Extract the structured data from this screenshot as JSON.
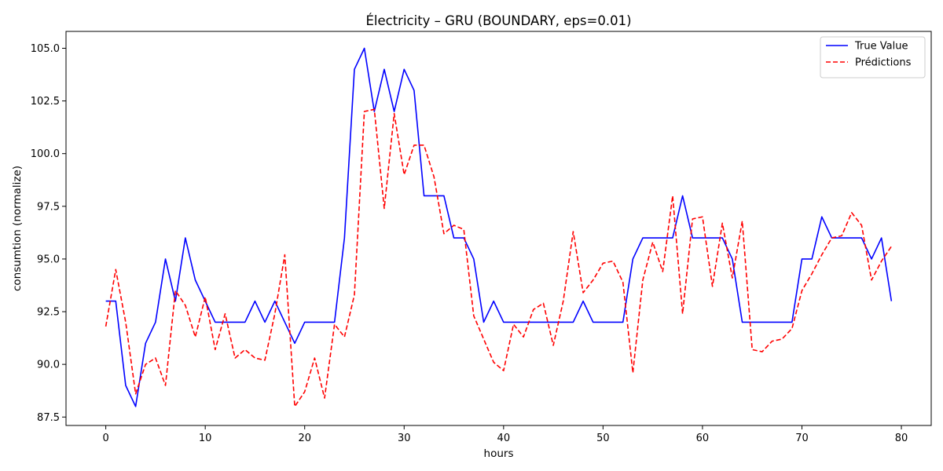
{
  "chart_data": {
    "type": "line",
    "title": "Électricity – GRU (BOUNDARY, eps=0.01)",
    "xlabel": "hours",
    "ylabel": "consumtion (normalize)",
    "xlim": [
      -4,
      83
    ],
    "ylim": [
      87.1,
      105.8
    ],
    "xticks": [
      0,
      10,
      20,
      30,
      40,
      50,
      60,
      70,
      80
    ],
    "yticks": [
      87.5,
      90.0,
      92.5,
      95.0,
      97.5,
      100.0,
      102.5,
      105.0
    ],
    "ytick_labels": [
      "87.5",
      "90.0",
      "92.5",
      "95.0",
      "97.5",
      "100.0",
      "102.5",
      "105.0"
    ],
    "grid": false,
    "legend_position": "top-right",
    "series": [
      {
        "name": "True Value",
        "color": "#0000ff",
        "style": "solid",
        "values": [
          93,
          93,
          89,
          88,
          91,
          92,
          95,
          93,
          96,
          94,
          93,
          92,
          92,
          92,
          92,
          93,
          92,
          93,
          92,
          91,
          92,
          92,
          92,
          92,
          96,
          104,
          105,
          102,
          104,
          102,
          104,
          103,
          98,
          98,
          98,
          96,
          96,
          95,
          92,
          93,
          92,
          92,
          92,
          92,
          92,
          92,
          92,
          92,
          93,
          92,
          92,
          92,
          92,
          95,
          96,
          96,
          96,
          96,
          98,
          96,
          96,
          96,
          96,
          95,
          92,
          92,
          92,
          92,
          92,
          92,
          95,
          95,
          97,
          96,
          96,
          96,
          96,
          95,
          96,
          93
        ]
      },
      {
        "name": "Prédictions",
        "color": "#ff0000",
        "style": "dashed",
        "values": [
          91.8,
          94.5,
          92.0,
          88.6,
          90.0,
          90.3,
          89.0,
          93.5,
          92.8,
          91.3,
          93.2,
          90.7,
          92.4,
          90.3,
          90.7,
          90.3,
          90.2,
          92.4,
          95.2,
          88.0,
          88.7,
          90.3,
          88.4,
          91.9,
          91.3,
          93.3,
          102.0,
          102.1,
          97.4,
          101.9,
          99.0,
          100.4,
          100.4,
          98.9,
          96.2,
          96.6,
          96.4,
          92.3,
          91.2,
          90.1,
          89.7,
          91.9,
          91.3,
          92.6,
          92.9,
          90.9,
          93.0,
          96.3,
          93.4,
          94.0,
          94.8,
          94.9,
          93.9,
          89.6,
          94.0,
          95.8,
          94.4,
          98.0,
          92.4,
          96.9,
          97.0,
          93.7,
          96.7,
          94.1,
          96.8,
          90.7,
          90.6,
          91.1,
          91.2,
          91.7,
          93.5,
          94.3,
          95.2,
          96.0,
          96.1,
          97.2,
          96.6,
          94.0,
          94.9,
          95.6
        ]
      }
    ]
  }
}
